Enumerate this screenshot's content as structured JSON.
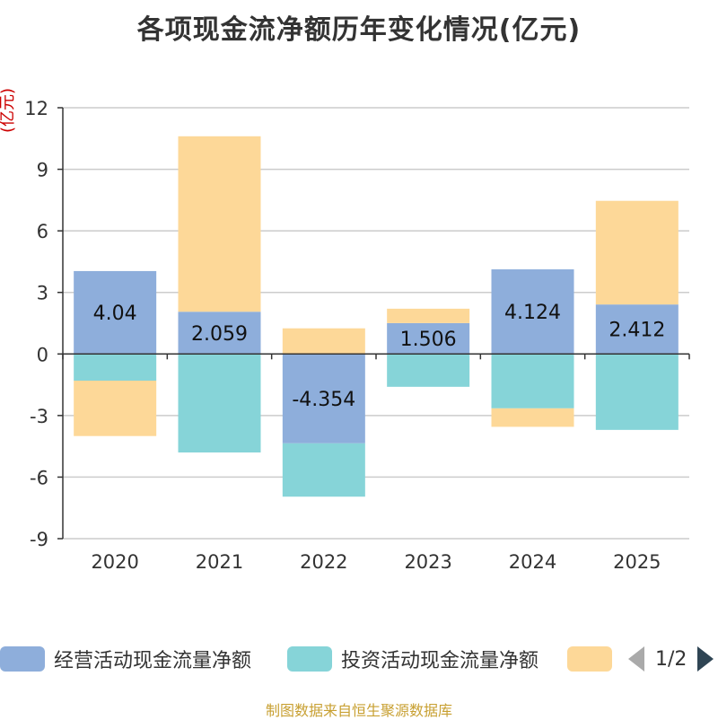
{
  "chart_data": {
    "type": "bar",
    "stacked": true,
    "title": "各项现金流净额历年变化情况(亿元)",
    "ylabel": "(亿元)",
    "xlabel": "",
    "categories": [
      "2020",
      "2021",
      "2022",
      "2023",
      "2024",
      "2025"
    ],
    "ylim": [
      -9,
      12
    ],
    "yticks": [
      -9,
      -6,
      -3,
      0,
      3,
      6,
      9,
      12
    ],
    "ytick_labels": [
      "-9",
      "-6",
      "-3",
      "0",
      "3",
      "6",
      "9",
      "12"
    ],
    "grid": true,
    "series": [
      {
        "name": "经营活动现金流量净额",
        "color": "#8eaedb",
        "values": [
          4.04,
          2.059,
          -4.354,
          1.506,
          4.124,
          2.412
        ],
        "labels": [
          "4.04",
          "2.059",
          "-4.354",
          "1.506",
          "4.124",
          "2.412"
        ]
      },
      {
        "name": "投资活动现金流量净额",
        "color": "#86d4d8",
        "values": [
          -1.3,
          -4.8,
          -2.6,
          -1.6,
          -2.65,
          -3.7
        ]
      },
      {
        "name": "",
        "color": "#fdd898",
        "values": [
          -2.7,
          8.55,
          1.25,
          0.7,
          -0.9,
          5.05
        ]
      }
    ],
    "legend": {
      "position": "bottom",
      "page": "1/2"
    }
  },
  "source": "制图数据来自恒生聚源数据库"
}
